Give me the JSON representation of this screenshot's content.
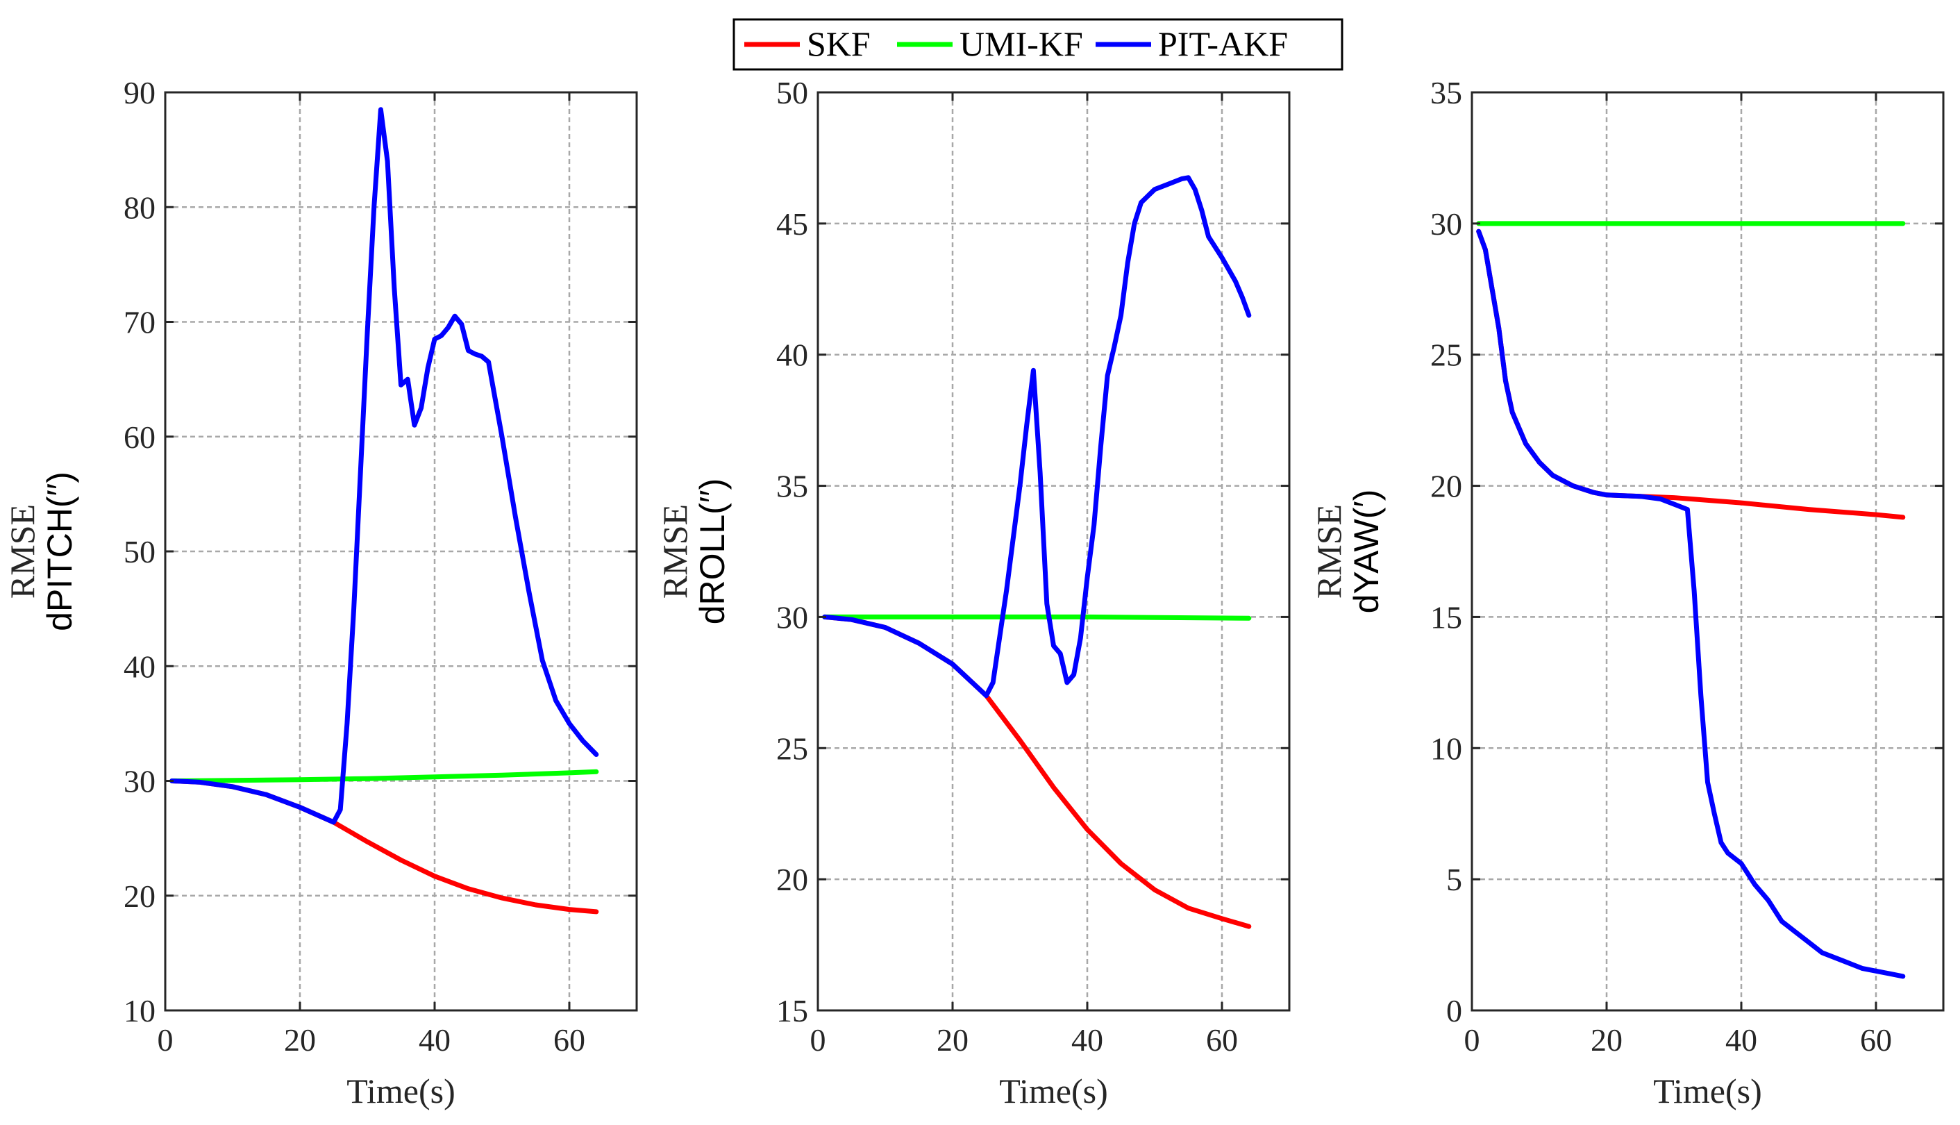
{
  "legend": [
    {
      "name": "SKF",
      "color": "#ff0000"
    },
    {
      "name": "UMI-KF",
      "color": "#00ff00"
    },
    {
      "name": "PIT-AKF",
      "color": "#0000ff"
    }
  ],
  "chart_data": [
    {
      "type": "line",
      "xlabel": "Time(s)",
      "ylabel_top": "RMSE",
      "ylabel_bottom": "dPITCH(′′)",
      "xlim": [
        0,
        70
      ],
      "ylim": [
        10,
        90
      ],
      "xticks": [
        0,
        20,
        40,
        60
      ],
      "yticks": [
        10,
        20,
        30,
        40,
        50,
        60,
        70,
        80,
        90
      ],
      "grid": true,
      "series": [
        {
          "name": "SKF",
          "color": "#ff0000",
          "x": [
            1,
            5,
            10,
            15,
            20,
            25,
            30,
            35,
            40,
            45,
            50,
            55,
            60,
            64
          ],
          "y": [
            30,
            29.9,
            29.5,
            28.8,
            27.7,
            26.4,
            24.7,
            23.1,
            21.7,
            20.6,
            19.8,
            19.2,
            18.8,
            18.6
          ]
        },
        {
          "name": "UMI-KF",
          "color": "#00ff00",
          "x": [
            1,
            10,
            20,
            30,
            40,
            50,
            60,
            64
          ],
          "y": [
            30,
            30.05,
            30.1,
            30.2,
            30.35,
            30.5,
            30.7,
            30.8
          ]
        },
        {
          "name": "PIT-AKF",
          "color": "#0000ff",
          "x": [
            1,
            5,
            10,
            15,
            20,
            25,
            26,
            27,
            28,
            29,
            30,
            31,
            32,
            33,
            34,
            35,
            36,
            37,
            38,
            39,
            40,
            41,
            42,
            43,
            44,
            45,
            46,
            47,
            48,
            50,
            52,
            54,
            56,
            58,
            60,
            62,
            64
          ],
          "y": [
            30,
            29.9,
            29.5,
            28.8,
            27.7,
            26.4,
            27.5,
            35,
            45,
            57,
            69,
            80,
            88.5,
            84,
            73,
            64.5,
            65,
            61,
            62.5,
            66,
            68.5,
            68.8,
            69.5,
            70.5,
            69.8,
            67.5,
            67.2,
            67,
            66.5,
            60,
            53,
            46.5,
            40.5,
            37,
            35,
            33.5,
            32.3
          ]
        }
      ]
    },
    {
      "type": "line",
      "xlabel": "Time(s)",
      "ylabel_top": "RMSE",
      "ylabel_bottom": "dROLL(′′)",
      "xlim": [
        0,
        70
      ],
      "ylim": [
        15,
        50
      ],
      "xticks": [
        0,
        20,
        40,
        60
      ],
      "yticks": [
        15,
        20,
        25,
        30,
        35,
        40,
        45,
        50
      ],
      "grid": true,
      "series": [
        {
          "name": "SKF",
          "color": "#ff0000",
          "x": [
            1,
            5,
            10,
            15,
            20,
            25,
            30,
            35,
            40,
            45,
            50,
            55,
            60,
            64
          ],
          "y": [
            30,
            29.9,
            29.6,
            29,
            28.2,
            27,
            25.3,
            23.5,
            21.9,
            20.6,
            19.6,
            18.9,
            18.5,
            18.2
          ]
        },
        {
          "name": "UMI-KF",
          "color": "#00ff00",
          "x": [
            1,
            20,
            40,
            64
          ],
          "y": [
            30,
            30,
            30,
            29.95
          ]
        },
        {
          "name": "PIT-AKF",
          "color": "#0000ff",
          "x": [
            1,
            5,
            10,
            15,
            20,
            25,
            26,
            28,
            30,
            31,
            32,
            33,
            34,
            35,
            36,
            37,
            38,
            39,
            40,
            41,
            42,
            43,
            44,
            45,
            46,
            47,
            48,
            50,
            52,
            54,
            55,
            56,
            57,
            58,
            60,
            62,
            63,
            64
          ],
          "y": [
            30,
            29.9,
            29.6,
            29,
            28.2,
            27,
            27.5,
            31,
            35,
            37.3,
            39.4,
            35.5,
            30.5,
            28.9,
            28.6,
            27.5,
            27.8,
            29.2,
            31.5,
            33.5,
            36.5,
            39.2,
            40.3,
            41.5,
            43.5,
            45,
            45.8,
            46.3,
            46.5,
            46.7,
            46.75,
            46.3,
            45.5,
            44.5,
            43.7,
            42.8,
            42.2,
            41.5
          ]
        }
      ]
    },
    {
      "type": "line",
      "xlabel": "Time(s)",
      "ylabel_top": "RMSE",
      "ylabel_bottom": "dYAW(′)",
      "xlim": [
        0,
        70
      ],
      "ylim": [
        0,
        35
      ],
      "xticks": [
        0,
        20,
        40,
        60
      ],
      "yticks": [
        0,
        5,
        10,
        15,
        20,
        25,
        30,
        35
      ],
      "grid": true,
      "series": [
        {
          "name": "SKF",
          "color": "#ff0000",
          "x": [
            1,
            2,
            3,
            4,
            5,
            6,
            8,
            10,
            12,
            15,
            18,
            20,
            25,
            30,
            40,
            50,
            60,
            64
          ],
          "y": [
            29.7,
            29,
            27.5,
            26,
            24,
            22.8,
            21.6,
            20.9,
            20.4,
            20,
            19.75,
            19.65,
            19.6,
            19.55,
            19.35,
            19.1,
            18.9,
            18.8
          ]
        },
        {
          "name": "UMI-KF",
          "color": "#00ff00",
          "x": [
            1,
            20,
            40,
            64
          ],
          "y": [
            30,
            30,
            30,
            30
          ]
        },
        {
          "name": "PIT-AKF",
          "color": "#0000ff",
          "x": [
            1,
            2,
            3,
            4,
            5,
            6,
            8,
            10,
            12,
            15,
            18,
            20,
            25,
            28,
            30,
            32,
            33,
            34,
            35,
            36,
            37,
            38,
            40,
            42,
            44,
            46,
            48,
            50,
            52,
            55,
            58,
            60,
            62,
            64
          ],
          "y": [
            29.7,
            29,
            27.5,
            26,
            24,
            22.8,
            21.6,
            20.9,
            20.4,
            20,
            19.75,
            19.65,
            19.6,
            19.5,
            19.3,
            19.1,
            16,
            12,
            8.7,
            7.5,
            6.4,
            6,
            5.6,
            4.8,
            4.2,
            3.4,
            3,
            2.6,
            2.2,
            1.9,
            1.6,
            1.5,
            1.4,
            1.3
          ]
        }
      ]
    }
  ]
}
